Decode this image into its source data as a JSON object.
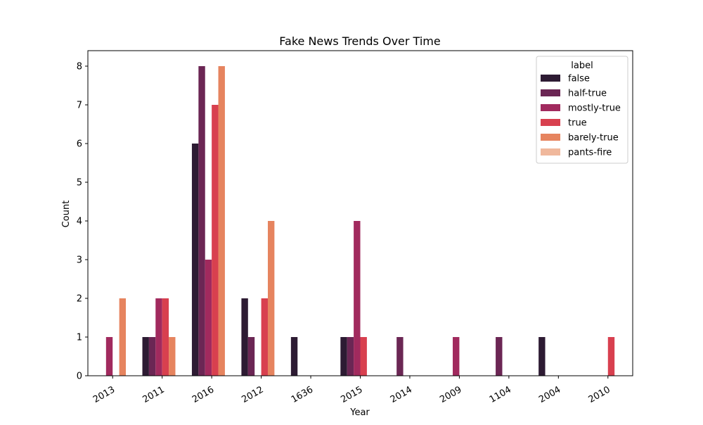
{
  "chart_data": {
    "type": "bar",
    "title": "Fake News Trends Over Time",
    "xlabel": "Year",
    "ylabel": "Count",
    "ylim": [
      0,
      8.4
    ],
    "yticks": [
      0,
      1,
      2,
      3,
      4,
      5,
      6,
      7,
      8
    ],
    "grid": false,
    "categories": [
      "2013",
      "2011",
      "2016",
      "2012",
      "1636",
      "2015",
      "2014",
      "2009",
      "1104",
      "2004",
      "2010"
    ],
    "legend": {
      "title": "label",
      "placement": "top-right"
    },
    "series": [
      {
        "name": "false",
        "color": "#2d1b33",
        "values": [
          0,
          1,
          6,
          2,
          1,
          1,
          0,
          0,
          0,
          1,
          0
        ]
      },
      {
        "name": "half-true",
        "color": "#6b2654",
        "values": [
          0,
          1,
          8,
          1,
          0,
          1,
          1,
          0,
          1,
          0,
          0
        ]
      },
      {
        "name": "mostly-true",
        "color": "#a12a5e",
        "values": [
          1,
          2,
          3,
          0,
          0,
          4,
          0,
          1,
          0,
          0,
          0
        ]
      },
      {
        "name": "true",
        "color": "#d8404f",
        "values": [
          0,
          2,
          7,
          2,
          0,
          1,
          0,
          0,
          0,
          0,
          1
        ]
      },
      {
        "name": "barely-true",
        "color": "#e6845f",
        "values": [
          2,
          1,
          8,
          4,
          0,
          0,
          0,
          0,
          0,
          0,
          0
        ]
      },
      {
        "name": "pants-fire",
        "color": "#f0b89c",
        "values": [
          0,
          0,
          0,
          0,
          0,
          0,
          0,
          0,
          0,
          0,
          0
        ]
      }
    ]
  }
}
